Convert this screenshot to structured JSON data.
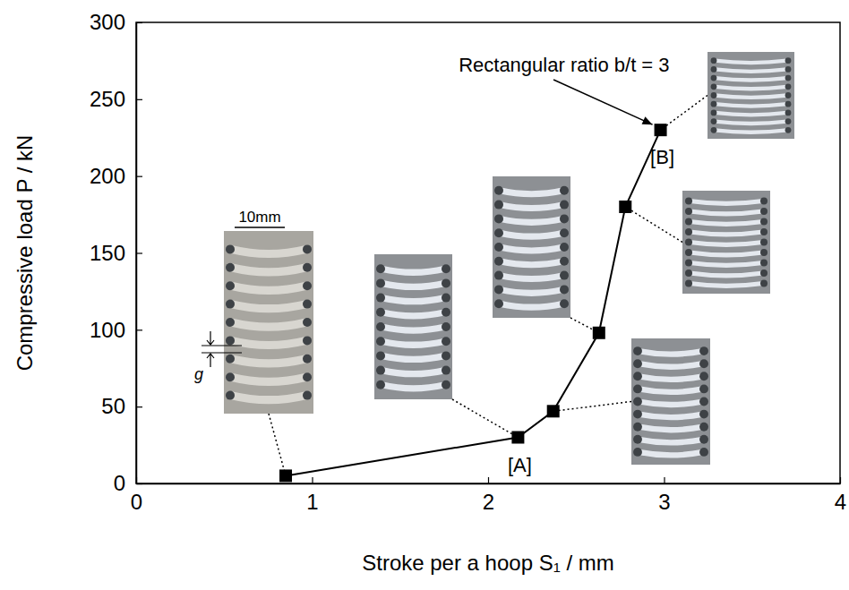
{
  "chart_data": {
    "type": "line",
    "marker": "square",
    "color": "#000000",
    "x_label": "Stroke per a hoop S₁ / mm",
    "y_label": "Compressive load P / kN",
    "x": [
      0.85,
      2.17,
      2.37,
      2.63,
      2.78,
      2.98
    ],
    "values": [
      5,
      30,
      47,
      98,
      180,
      230
    ],
    "xlim": [
      0,
      4
    ],
    "ylim": [
      0,
      300
    ],
    "xticks": [
      0,
      1,
      2,
      3,
      4
    ],
    "yticks": [
      0,
      50,
      100,
      150,
      200,
      250,
      300
    ],
    "grid": false,
    "annotations": [
      {
        "text": "[A]",
        "point": 1
      },
      {
        "text": "[B]",
        "point": 5
      },
      {
        "text": "Rectangular ratio b/t = 3",
        "point": 5
      }
    ],
    "photo_labels": [
      "10mm",
      "g"
    ]
  }
}
